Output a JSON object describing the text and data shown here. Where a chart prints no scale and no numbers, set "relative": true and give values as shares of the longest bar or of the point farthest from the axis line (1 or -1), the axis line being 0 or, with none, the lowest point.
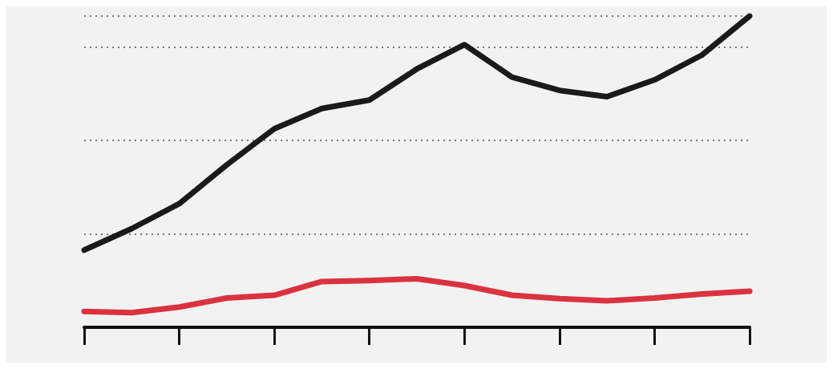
{
  "chart_data": {
    "type": "line",
    "relative": true,
    "categories": [
      null,
      null,
      null,
      null,
      null,
      null,
      null,
      null,
      null,
      null,
      null,
      null,
      null,
      null,
      null
    ],
    "series": [
      {
        "color": "#1a1a1a",
        "values": [
          0.248,
          0.317,
          0.397,
          0.522,
          0.638,
          0.703,
          0.73,
          0.83,
          0.908,
          0.804,
          0.761,
          0.741,
          0.795,
          0.875,
          1
        ]
      },
      {
        "color": "#d9333f",
        "values": [
          0.051,
          0.047,
          0.065,
          0.094,
          0.103,
          0.147,
          0.15,
          0.156,
          0.134,
          0.103,
          0.092,
          0.085,
          0.094,
          0.107,
          0.116
        ]
      }
    ],
    "grid": "y",
    "marker": "none",
    "line_style": "solid"
  }
}
